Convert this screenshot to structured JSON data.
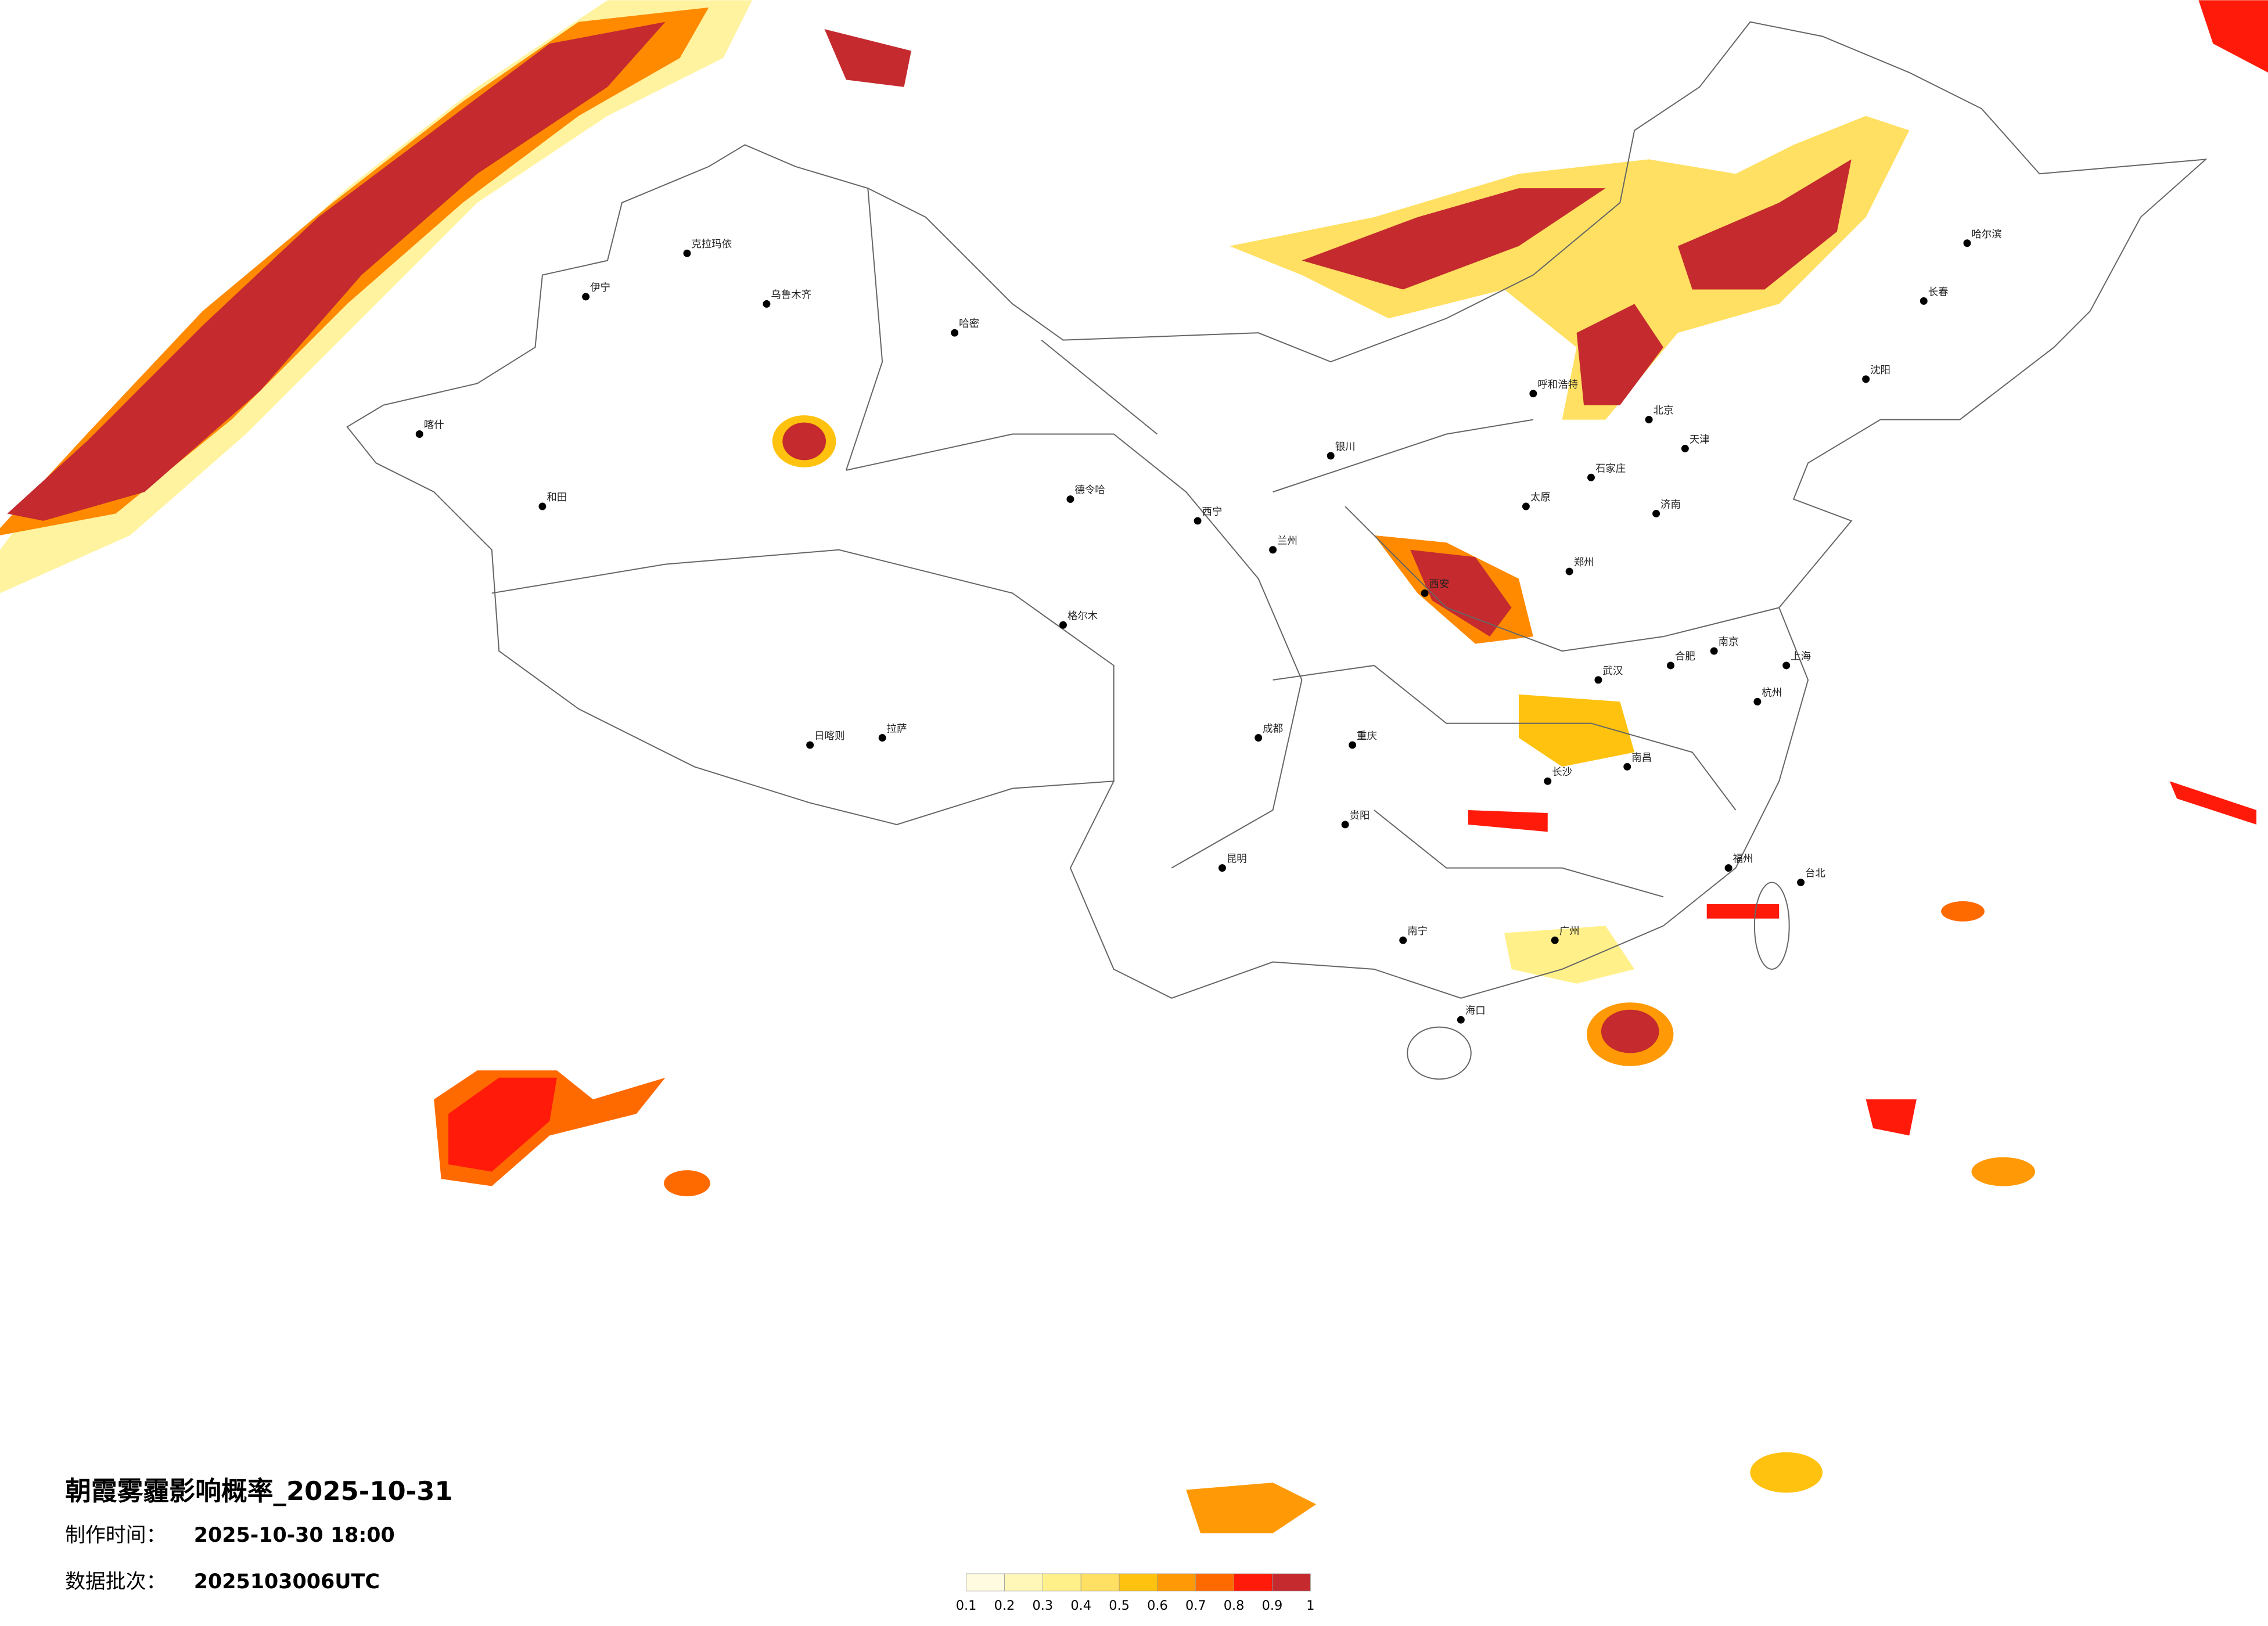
{
  "header": {
    "title": "朝霞雾霾影响概率_2025-10-31"
  },
  "meta": [
    {
      "label": "制作时间：",
      "value": "2025-10-30 18:00"
    },
    {
      "label": "数据批次：",
      "value": "2025103006UTC"
    }
  ],
  "colorbar": {
    "ticks": [
      0.1,
      0.2,
      0.3,
      0.4,
      0.5,
      0.6,
      0.7,
      0.8,
      0.9,
      1
    ],
    "colors": [
      "#fffbe0",
      "#fff7b8",
      "#fff08a",
      "#ffe062",
      "#ffc20e",
      "#ff9a06",
      "#ff6a00",
      "#ff1a0a",
      "#c42a2e"
    ]
  },
  "cities": [
    "哈尔滨",
    "长春",
    "沈阳",
    "北京",
    "天津",
    "石家庄",
    "太原",
    "呼和浩特",
    "济南",
    "郑州",
    "西安",
    "兰州",
    "西宁",
    "银川",
    "乌鲁木齐",
    "拉萨",
    "成都",
    "重庆",
    "武汉",
    "南京",
    "上海",
    "杭州",
    "合肥",
    "长沙",
    "南昌",
    "福州",
    "台北",
    "广州",
    "南宁",
    "海口",
    "昆明",
    "贵阳",
    "和田",
    "喀什",
    "伊宁",
    "克拉玛依",
    "德令哈",
    "格尔木",
    "日喀则",
    "哈密"
  ]
}
